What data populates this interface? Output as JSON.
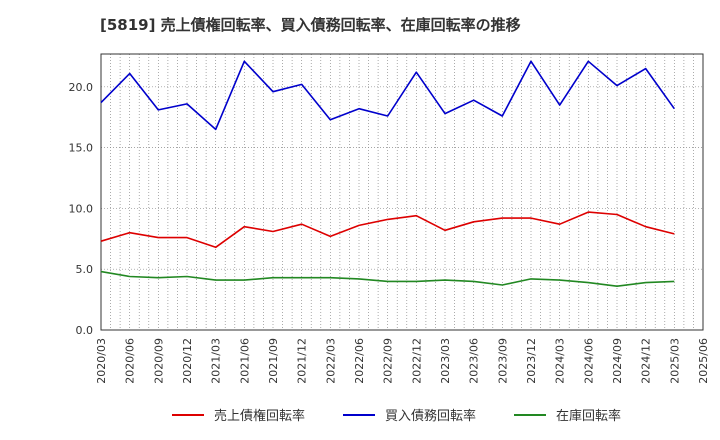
{
  "chart_data": {
    "type": "line",
    "title": "[5819]  売上債権回転率、買入債務回転率、在庫回転率の推移",
    "xlabel": "",
    "ylabel": "",
    "ylim": [
      0,
      22.7
    ],
    "yticks": [
      0.0,
      5.0,
      10.0,
      15.0,
      20.0
    ],
    "ytick_labels": [
      "0.0",
      "5.0",
      "10.0",
      "15.0",
      "20.0"
    ],
    "categories": [
      "2020/03",
      "2020/06",
      "2020/09",
      "2020/12",
      "2021/03",
      "2021/06",
      "2021/09",
      "2021/12",
      "2022/03",
      "2022/06",
      "2022/09",
      "2022/12",
      "2023/03",
      "2023/06",
      "2023/09",
      "2023/12",
      "2024/03",
      "2024/06",
      "2024/09",
      "2024/12",
      "2025/03",
      "2025/06"
    ],
    "grid": true,
    "legend_position": "bottom",
    "series": [
      {
        "name": "売上債権回転率",
        "color": "#dd0000",
        "values": [
          7.3,
          8.0,
          7.6,
          7.6,
          6.8,
          8.5,
          8.1,
          8.7,
          7.7,
          8.6,
          9.1,
          9.4,
          8.2,
          8.9,
          9.2,
          9.2,
          8.7,
          9.7,
          9.5,
          8.5,
          7.9,
          null
        ]
      },
      {
        "name": "買入債務回転率",
        "color": "#0000cc",
        "values": [
          18.7,
          21.1,
          18.1,
          18.6,
          16.5,
          22.1,
          19.6,
          20.2,
          17.3,
          18.2,
          17.6,
          21.2,
          17.8,
          18.9,
          17.6,
          22.1,
          18.5,
          22.1,
          20.1,
          21.5,
          18.2,
          null
        ]
      },
      {
        "name": "在庫回転率",
        "color": "#228822",
        "values": [
          4.8,
          4.4,
          4.3,
          4.4,
          4.1,
          4.1,
          4.3,
          4.3,
          4.3,
          4.2,
          4.0,
          4.0,
          4.1,
          4.0,
          3.7,
          4.2,
          4.1,
          3.9,
          3.6,
          3.9,
          4.0,
          null
        ]
      }
    ]
  }
}
